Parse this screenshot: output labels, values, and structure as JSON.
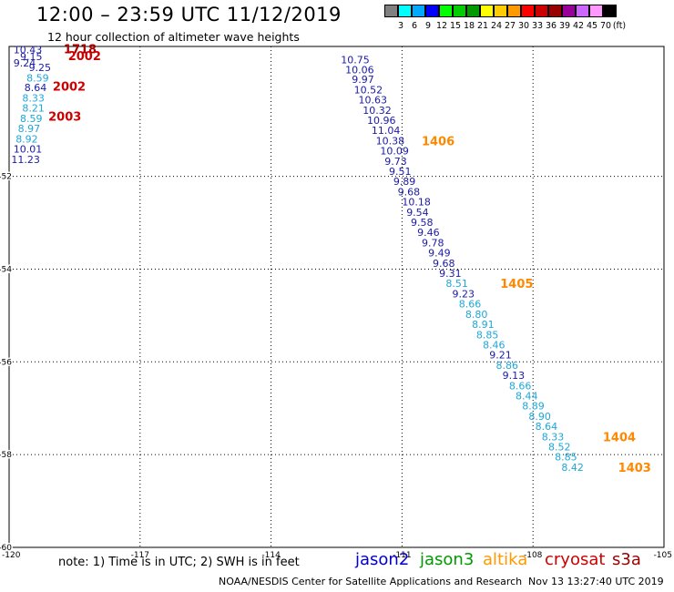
{
  "title": "12:00 – 23:59 UTC 11/12/2019",
  "subtitle": "12 hour collection of altimeter wave heights",
  "color_scale": {
    "colors": [
      "#808080",
      "#00ffff",
      "#00aaff",
      "#0000ff",
      "#00ff00",
      "#00cc00",
      "#009900",
      "#ffff00",
      "#ffcc00",
      "#ff9900",
      "#ff0000",
      "#cc0000",
      "#990000",
      "#990099",
      "#cc66ff",
      "#ff99ff",
      "#000000"
    ],
    "labels": [
      "3",
      "6",
      "9",
      "12",
      "15",
      "18",
      "21",
      "24",
      "27",
      "30",
      "33",
      "36",
      "39",
      "42",
      "45",
      "70",
      "(ft)"
    ]
  },
  "chart_data": {
    "type": "scatter",
    "title": "12:00 – 23:59 UTC 11/12/2019",
    "subtitle": "12 hour collection of altimeter wave heights",
    "xlim": [
      -120,
      -105
    ],
    "ylim": [
      -60,
      -49.2
    ],
    "x_ticks": [
      "-120",
      "-117",
      "-114",
      "-111",
      "-108",
      "-105"
    ],
    "y_ticks": [
      "-52",
      "-54",
      "-56",
      "-58",
      "-60"
    ],
    "grid": "dotted",
    "series": [
      {
        "name": "track-west",
        "labels": [
          {
            "lon": -119.9,
            "lat": -49.27,
            "text": "10.43",
            "color": "#1a1aa6"
          },
          {
            "lon": -119.75,
            "lat": -49.42,
            "text": "9.15",
            "color": "#1a1aa6"
          },
          {
            "lon": -119.9,
            "lat": -49.55,
            "text": "9.24",
            "color": "#1a1aa6"
          },
          {
            "lon": -119.55,
            "lat": -49.65,
            "text": "9.25",
            "color": "#1a1aa6"
          },
          {
            "lon": -119.6,
            "lat": -49.88,
            "text": "8.59",
            "color": "#1ea7d8"
          },
          {
            "lon": -119.65,
            "lat": -50.08,
            "text": "8.64",
            "color": "#1a1aa6"
          },
          {
            "lon": -119.7,
            "lat": -50.31,
            "text": "8.33",
            "color": "#1ea7d8"
          },
          {
            "lon": -119.7,
            "lat": -50.53,
            "text": "8.21",
            "color": "#1ea7d8"
          },
          {
            "lon": -119.75,
            "lat": -50.75,
            "text": "8.59",
            "color": "#1ea7d8"
          },
          {
            "lon": -119.8,
            "lat": -50.97,
            "text": "8.97",
            "color": "#1ea7d8"
          },
          {
            "lon": -119.85,
            "lat": -51.19,
            "text": "8.92",
            "color": "#1ea7d8"
          },
          {
            "lon": -119.9,
            "lat": -51.41,
            "text": "10.01",
            "color": "#1a1aa6"
          },
          {
            "lon": -119.95,
            "lat": -51.63,
            "text": "11.23",
            "color": "#1a1aa6"
          }
        ]
      },
      {
        "name": "track-east",
        "labels": [
          {
            "lon": -112.4,
            "lat": -49.48,
            "text": "10.75",
            "color": "#1a1aa6"
          },
          {
            "lon": -112.3,
            "lat": -49.7,
            "text": "10.06",
            "color": "#1a1aa6"
          },
          {
            "lon": -112.15,
            "lat": -49.91,
            "text": "9.97",
            "color": "#1a1aa6"
          },
          {
            "lon": -112.1,
            "lat": -50.13,
            "text": "10.52",
            "color": "#1a1aa6"
          },
          {
            "lon": -112.0,
            "lat": -50.35,
            "text": "10.63",
            "color": "#1a1aa6"
          },
          {
            "lon": -111.9,
            "lat": -50.57,
            "text": "10.32",
            "color": "#1a1aa6"
          },
          {
            "lon": -111.8,
            "lat": -50.79,
            "text": "10.96",
            "color": "#1a1aa6"
          },
          {
            "lon": -111.7,
            "lat": -51.01,
            "text": "11.04",
            "color": "#1a1aa6"
          },
          {
            "lon": -111.6,
            "lat": -51.23,
            "text": "10.38",
            "color": "#1a1aa6"
          },
          {
            "lon": -111.5,
            "lat": -51.45,
            "text": "10.09",
            "color": "#1a1aa6"
          },
          {
            "lon": -111.4,
            "lat": -51.67,
            "text": "9.73",
            "color": "#1a1aa6"
          },
          {
            "lon": -111.3,
            "lat": -51.89,
            "text": "9.51",
            "color": "#1a1aa6"
          },
          {
            "lon": -111.2,
            "lat": -52.11,
            "text": "9.89",
            "color": "#1a1aa6"
          },
          {
            "lon": -111.1,
            "lat": -52.33,
            "text": "9.68",
            "color": "#1a1aa6"
          },
          {
            "lon": -111.0,
            "lat": -52.55,
            "text": "10.18",
            "color": "#1a1aa6"
          },
          {
            "lon": -110.9,
            "lat": -52.77,
            "text": "9.54",
            "color": "#1a1aa6"
          },
          {
            "lon": -110.8,
            "lat": -52.99,
            "text": "9.58",
            "color": "#1a1aa6"
          },
          {
            "lon": -110.65,
            "lat": -53.21,
            "text": "9.46",
            "color": "#1a1aa6"
          },
          {
            "lon": -110.55,
            "lat": -53.43,
            "text": "9.78",
            "color": "#1a1aa6"
          },
          {
            "lon": -110.4,
            "lat": -53.65,
            "text": "9.49",
            "color": "#1a1aa6"
          },
          {
            "lon": -110.3,
            "lat": -53.87,
            "text": "9.68",
            "color": "#1a1aa6"
          },
          {
            "lon": -110.15,
            "lat": -54.09,
            "text": "9.31",
            "color": "#1a1aa6"
          },
          {
            "lon": -110.0,
            "lat": -54.31,
            "text": "8.51",
            "color": "#1ea7d8"
          },
          {
            "lon": -109.85,
            "lat": -54.53,
            "text": "9.23",
            "color": "#1a1aa6"
          },
          {
            "lon": -109.7,
            "lat": -54.75,
            "text": "8.66",
            "color": "#1ea7d8"
          },
          {
            "lon": -109.55,
            "lat": -54.97,
            "text": "8.80",
            "color": "#1ea7d8"
          },
          {
            "lon": -109.4,
            "lat": -55.19,
            "text": "8.91",
            "color": "#1ea7d8"
          },
          {
            "lon": -109.3,
            "lat": -55.41,
            "text": "8.85",
            "color": "#1ea7d8"
          },
          {
            "lon": -109.15,
            "lat": -55.63,
            "text": "8.46",
            "color": "#1ea7d8"
          },
          {
            "lon": -109.0,
            "lat": -55.85,
            "text": "9.21",
            "color": "#1a1aa6"
          },
          {
            "lon": -108.85,
            "lat": -56.07,
            "text": "8.86",
            "color": "#1ea7d8"
          },
          {
            "lon": -108.7,
            "lat": -56.29,
            "text": "9.13",
            "color": "#1a1aa6"
          },
          {
            "lon": -108.55,
            "lat": -56.51,
            "text": "8.66",
            "color": "#1ea7d8"
          },
          {
            "lon": -108.4,
            "lat": -56.73,
            "text": "8.44",
            "color": "#1ea7d8"
          },
          {
            "lon": -108.25,
            "lat": -56.95,
            "text": "8.89",
            "color": "#1ea7d8"
          },
          {
            "lon": -108.1,
            "lat": -57.17,
            "text": "8.90",
            "color": "#1ea7d8"
          },
          {
            "lon": -107.95,
            "lat": -57.39,
            "text": "8.64",
            "color": "#1ea7d8"
          },
          {
            "lon": -107.8,
            "lat": -57.61,
            "text": "8.33",
            "color": "#1ea7d8"
          },
          {
            "lon": -107.65,
            "lat": -57.83,
            "text": "8.52",
            "color": "#1ea7d8"
          },
          {
            "lon": -107.5,
            "lat": -58.05,
            "text": "8.85",
            "color": "#1ea7d8"
          },
          {
            "lon": -107.35,
            "lat": -58.27,
            "text": "8.42",
            "color": "#1ea7d8"
          }
        ]
      }
    ],
    "time_labels": [
      {
        "lon": -118.75,
        "lat": -49.25,
        "text": "1718",
        "color": "#aa0000"
      },
      {
        "lon": -118.65,
        "lat": -49.4,
        "text": "2002",
        "color": "#cc0000"
      },
      {
        "lon": -119.0,
        "lat": -50.05,
        "text": "2002",
        "color": "#cc0000"
      },
      {
        "lon": -119.1,
        "lat": -50.7,
        "text": "2003",
        "color": "#cc0000"
      },
      {
        "lon": -110.55,
        "lat": -51.23,
        "text": "1406",
        "color": "#ff8800"
      },
      {
        "lon": -108.75,
        "lat": -54.31,
        "text": "1405",
        "color": "#ff8800"
      },
      {
        "lon": -106.4,
        "lat": -57.61,
        "text": "1404",
        "color": "#ff8800"
      },
      {
        "lon": -106.05,
        "lat": -58.27,
        "text": "1403",
        "color": "#ff8800"
      }
    ]
  },
  "note": "note:  1) Time is in UTC;  2) SWH is in feet",
  "legend": [
    {
      "label": "jason2",
      "color": "#0000cc"
    },
    {
      "label": "jason3",
      "color": "#009900"
    },
    {
      "label": "altika",
      "color": "#ff9900"
    },
    {
      "label": "cryosat",
      "color": "#cc0000"
    },
    {
      "label": "s3a",
      "color": "#990000"
    }
  ],
  "footer": "NOAA/NESDIS Center for Satellite Applications and Research",
  "footer_time": "Nov 13 13:27:40 UTC 2019"
}
